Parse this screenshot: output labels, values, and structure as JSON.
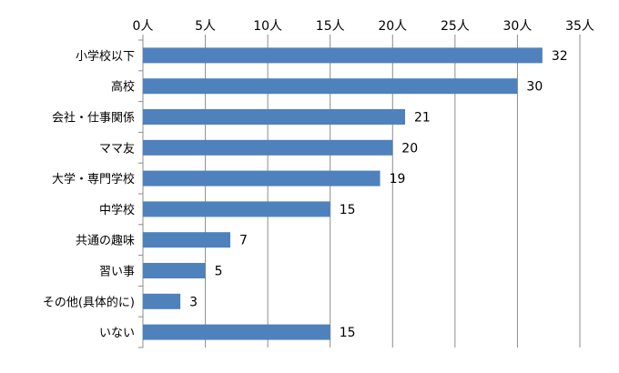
{
  "chart_data": {
    "type": "bar",
    "orientation": "horizontal",
    "categories": [
      "小学校以下",
      "高校",
      "会社・仕事関係",
      "ママ友",
      "大学・専門学校",
      "中学校",
      "共通の趣味",
      "習い事",
      "その他(具体的に)",
      "いない"
    ],
    "values": [
      32,
      30,
      21,
      20,
      19,
      15,
      7,
      5,
      3,
      15
    ],
    "xlim": [
      0,
      35
    ],
    "xticks": [
      0,
      5,
      10,
      15,
      20,
      25,
      30,
      35
    ],
    "tick_labels": [
      "0人",
      "5人",
      "10人",
      "15人",
      "20人",
      "25人",
      "30人",
      "35人"
    ],
    "x_axis_position": "top",
    "grid": true,
    "bar_color": "#4F81BD",
    "data_labels": true,
    "title": "",
    "xlabel": "",
    "ylabel": ""
  }
}
